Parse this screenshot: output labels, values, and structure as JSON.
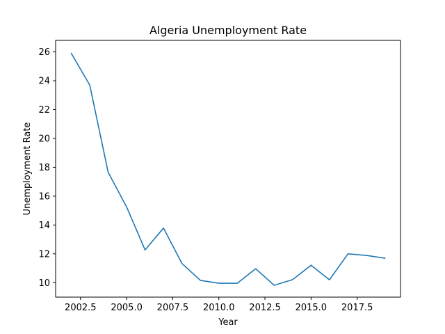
{
  "chart_data": {
    "type": "line",
    "title": "Algeria Unemployment Rate",
    "xlabel": "Year",
    "ylabel": "Unemployment Rate",
    "xlim": [
      2001.15,
      2019.85
    ],
    "ylim": [
      9.0,
      26.8
    ],
    "xticks": [
      2002.5,
      2005.0,
      2007.5,
      2010.0,
      2012.5,
      2015.0,
      2017.5
    ],
    "xtick_labels": [
      "2002.5",
      "2005.0",
      "2007.5",
      "2010.0",
      "2012.5",
      "2015.0",
      "2017.5"
    ],
    "yticks": [
      10,
      12,
      14,
      16,
      18,
      20,
      22,
      24,
      26
    ],
    "ytick_labels": [
      "10",
      "12",
      "14",
      "16",
      "18",
      "20",
      "22",
      "24",
      "26"
    ],
    "grid": false,
    "series": [
      {
        "color": "#1f77b4",
        "x": [
          2002,
          2003,
          2004,
          2005,
          2006,
          2007,
          2008,
          2009,
          2010,
          2011,
          2012,
          2013,
          2014,
          2015,
          2016,
          2017,
          2018,
          2019
        ],
        "y": [
          25.9,
          23.7,
          17.65,
          15.25,
          12.27,
          13.79,
          11.33,
          10.16,
          9.96,
          9.96,
          10.97,
          9.82,
          10.21,
          11.21,
          10.2,
          12.0,
          11.89,
          11.7
        ]
      }
    ]
  }
}
